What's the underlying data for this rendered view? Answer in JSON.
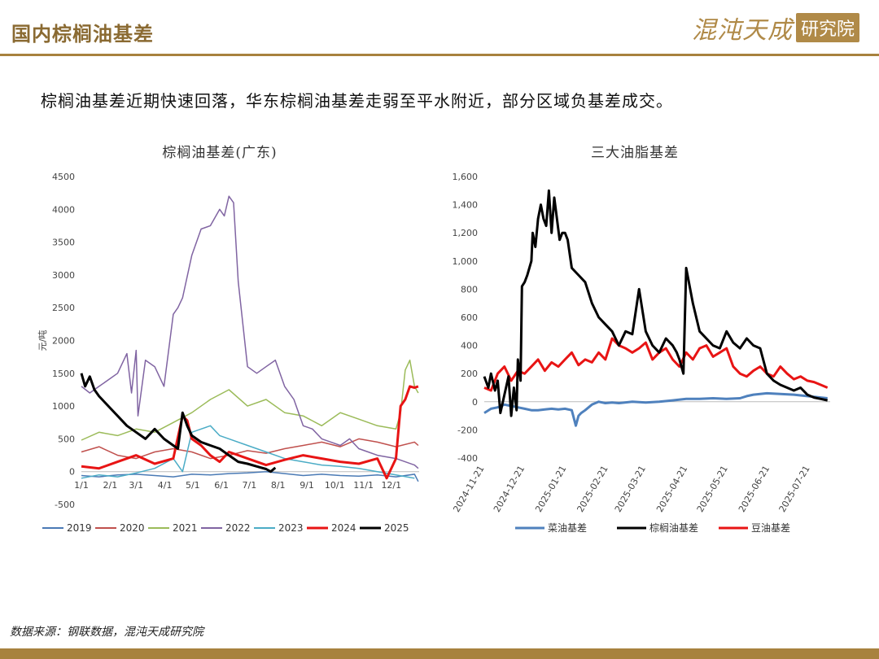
{
  "header": {
    "title": "国内棕榈油基差",
    "logo_main": "混沌天成",
    "logo_box": "研究院"
  },
  "summary": "棕榈油基差近期快速回落，华东棕榈油基差走弱至平水附近，部分区域负基差成交。",
  "footer": {
    "source": "数据来源：钢联数据，混沌天成研究院"
  },
  "chart_data": [
    {
      "type": "line",
      "title": "棕榈油基差(广东)",
      "ylabel": "元/吨",
      "xlabel": "",
      "ylim": [
        -500,
        4500
      ],
      "yticks": [
        -500,
        0,
        500,
        1000,
        1500,
        2000,
        2500,
        3000,
        3500,
        4000,
        4500
      ],
      "xlim": [
        1,
        365
      ],
      "xticks": [
        {
          "label": "1/1",
          "x": 1
        },
        {
          "label": "2/1",
          "x": 32
        },
        {
          "label": "3/1",
          "x": 60
        },
        {
          "label": "4/1",
          "x": 91
        },
        {
          "label": "5/1",
          "x": 121
        },
        {
          "label": "6/1",
          "x": 152
        },
        {
          "label": "7/1",
          "x": 182
        },
        {
          "label": "8/1",
          "x": 213
        },
        {
          "label": "9/1",
          "x": 244
        },
        {
          "label": "10/1",
          "x": 274
        },
        {
          "label": "11/1",
          "x": 305
        },
        {
          "label": "12/1",
          "x": 335
        }
      ],
      "legend_position": "bottom",
      "series": [
        {
          "name": "2019",
          "color": "#4a7ab5",
          "width": 1.5,
          "x": [
            1,
            20,
            40,
            60,
            80,
            100,
            120,
            140,
            160,
            180,
            200,
            220,
            240,
            260,
            280,
            300,
            320,
            340,
            360,
            364
          ],
          "y": [
            -60,
            -80,
            -50,
            -40,
            -60,
            -80,
            -40,
            -50,
            -30,
            -20,
            0,
            -30,
            -60,
            -40,
            -60,
            -70,
            -50,
            -80,
            -40,
            -150
          ]
        },
        {
          "name": "2020",
          "color": "#c0504d",
          "width": 1.5,
          "x": [
            1,
            20,
            40,
            60,
            80,
            100,
            120,
            140,
            160,
            180,
            200,
            220,
            240,
            260,
            280,
            300,
            320,
            340,
            360,
            364
          ],
          "y": [
            300,
            380,
            250,
            200,
            300,
            350,
            300,
            200,
            250,
            320,
            280,
            350,
            400,
            450,
            380,
            500,
            450,
            380,
            450,
            400
          ]
        },
        {
          "name": "2021",
          "color": "#9bbb59",
          "width": 1.5,
          "x": [
            1,
            20,
            40,
            60,
            80,
            100,
            120,
            140,
            160,
            180,
            200,
            220,
            240,
            260,
            280,
            300,
            320,
            340,
            345,
            350,
            355,
            360,
            364
          ],
          "y": [
            480,
            600,
            550,
            650,
            600,
            750,
            900,
            1100,
            1250,
            1000,
            1100,
            900,
            850,
            700,
            900,
            800,
            700,
            650,
            900,
            1550,
            1700,
            1300,
            1200
          ]
        },
        {
          "name": "2022",
          "color": "#8064a2",
          "width": 1.5,
          "x": [
            1,
            10,
            20,
            30,
            40,
            50,
            55,
            60,
            62,
            70,
            80,
            90,
            100,
            105,
            110,
            120,
            130,
            140,
            150,
            155,
            160,
            165,
            170,
            180,
            190,
            200,
            210,
            220,
            230,
            240,
            250,
            260,
            270,
            280,
            290,
            300,
            310,
            320,
            340,
            360,
            364
          ],
          "y": [
            1300,
            1200,
            1300,
            1400,
            1500,
            1800,
            1200,
            1850,
            850,
            1700,
            1600,
            1300,
            2400,
            2500,
            2650,
            3300,
            3700,
            3750,
            4000,
            3900,
            4200,
            4100,
            2900,
            1600,
            1500,
            1600,
            1700,
            1300,
            1100,
            700,
            650,
            500,
            450,
            400,
            500,
            350,
            300,
            250,
            200,
            100,
            50
          ]
        },
        {
          "name": "2023",
          "color": "#4bacc6",
          "width": 1.5,
          "x": [
            1,
            20,
            40,
            60,
            80,
            100,
            110,
            120,
            130,
            140,
            150,
            160,
            180,
            200,
            220,
            240,
            260,
            280,
            300,
            320,
            340,
            360
          ],
          "y": [
            -100,
            -50,
            -80,
            -20,
            50,
            200,
            0,
            600,
            650,
            700,
            550,
            500,
            400,
            300,
            200,
            150,
            100,
            80,
            50,
            0,
            -50,
            -100
          ]
        },
        {
          "name": "2024",
          "color": "#e81414",
          "width": 3,
          "x": [
            1,
            20,
            40,
            60,
            80,
            100,
            110,
            115,
            120,
            130,
            140,
            150,
            160,
            180,
            200,
            220,
            240,
            260,
            280,
            300,
            320,
            330,
            340,
            345,
            350,
            355,
            360,
            364
          ],
          "y": [
            80,
            50,
            150,
            250,
            120,
            200,
            850,
            780,
            500,
            400,
            250,
            150,
            300,
            200,
            100,
            180,
            250,
            200,
            150,
            120,
            200,
            -100,
            200,
            1000,
            1100,
            1300,
            1280,
            1300
          ]
        },
        {
          "name": "2025",
          "color": "#000000",
          "width": 3,
          "x": [
            1,
            5,
            10,
            15,
            20,
            30,
            40,
            50,
            60,
            70,
            80,
            90,
            100,
            105,
            110,
            115,
            120,
            130,
            140,
            150,
            160,
            170,
            180,
            190,
            200,
            205,
            210
          ],
          "y": [
            1500,
            1300,
            1450,
            1250,
            1150,
            1000,
            850,
            700,
            600,
            500,
            650,
            500,
            400,
            350,
            900,
            700,
            550,
            450,
            400,
            350,
            250,
            150,
            120,
            80,
            40,
            0,
            60
          ]
        }
      ]
    },
    {
      "type": "line",
      "title": "三大油脂基差",
      "ylabel": "",
      "xlabel": "",
      "ylim": [
        -400,
        1600
      ],
      "yticks": [
        -400,
        -200,
        0,
        200,
        400,
        600,
        800,
        1000,
        1200,
        1400,
        1600
      ],
      "ytick_labels": [
        "-400",
        "-200",
        "0",
        "200",
        "400",
        "600",
        "800",
        "1,000",
        "1,200",
        "1,400",
        "1,600"
      ],
      "xlim": [
        0,
        257
      ],
      "xticks": [
        {
          "label": "2024-11-21",
          "x": 0
        },
        {
          "label": "2024-12-21",
          "x": 30
        },
        {
          "label": "2025-01-21",
          "x": 61
        },
        {
          "label": "2025-02-21",
          "x": 92
        },
        {
          "label": "2025-03-21",
          "x": 120
        },
        {
          "label": "2025-04-21",
          "x": 151
        },
        {
          "label": "2025-05-21",
          "x": 181
        },
        {
          "label": "2025-06-21",
          "x": 212
        },
        {
          "label": "2025-07-21",
          "x": 242
        }
      ],
      "legend_position": "bottom",
      "series": [
        {
          "name": "豆油基差",
          "color": "#e81414",
          "width": 3,
          "x": [
            0,
            5,
            10,
            15,
            20,
            25,
            30,
            35,
            40,
            45,
            50,
            55,
            60,
            65,
            70,
            75,
            80,
            85,
            90,
            95,
            100,
            105,
            110,
            115,
            120,
            125,
            130,
            135,
            140,
            145,
            150,
            155,
            160,
            165,
            170,
            175,
            180,
            185,
            190,
            195,
            200,
            205,
            210,
            215,
            220,
            225,
            230,
            235,
            240,
            245,
            250,
            255
          ],
          "y": [
            100,
            80,
            200,
            250,
            150,
            220,
            200,
            250,
            300,
            220,
            280,
            250,
            300,
            350,
            260,
            300,
            280,
            350,
            300,
            450,
            400,
            380,
            350,
            380,
            420,
            300,
            350,
            380,
            300,
            250,
            350,
            300,
            380,
            400,
            320,
            350,
            380,
            250,
            200,
            180,
            220,
            250,
            200,
            180,
            250,
            200,
            160,
            180,
            150,
            140,
            120,
            100
          ]
        },
        {
          "name": "菜油基差",
          "color": "#4f81bd",
          "width": 3,
          "x": [
            0,
            5,
            10,
            15,
            20,
            25,
            30,
            35,
            40,
            45,
            50,
            55,
            60,
            65,
            68,
            70,
            72,
            75,
            80,
            85,
            90,
            95,
            100,
            110,
            120,
            130,
            140,
            150,
            160,
            170,
            180,
            190,
            195,
            200,
            210,
            220,
            230,
            240,
            250,
            255
          ],
          "y": [
            -80,
            -50,
            -40,
            -20,
            -30,
            -40,
            -50,
            -60,
            -60,
            -55,
            -50,
            -55,
            -50,
            -60,
            -170,
            -100,
            -80,
            -60,
            -20,
            0,
            -10,
            -5,
            -10,
            0,
            -5,
            0,
            10,
            20,
            20,
            25,
            20,
            25,
            40,
            50,
            60,
            55,
            50,
            40,
            30,
            25
          ]
        },
        {
          "name": "棕榈油基差",
          "color": "#000000",
          "width": 3,
          "x": [
            0,
            3,
            5,
            8,
            10,
            12,
            15,
            18,
            20,
            22,
            24,
            25,
            27,
            28,
            30,
            32,
            35,
            36,
            38,
            40,
            42,
            44,
            46,
            48,
            50,
            52,
            54,
            56,
            58,
            60,
            62,
            65,
            70,
            75,
            80,
            85,
            90,
            95,
            100,
            105,
            110,
            115,
            120,
            125,
            130,
            135,
            140,
            143,
            145,
            148,
            150,
            155,
            160,
            165,
            170,
            175,
            180,
            185,
            190,
            195,
            200,
            205,
            210,
            215,
            220,
            225,
            230,
            235,
            240,
            245,
            250,
            255
          ],
          "y": [
            180,
            100,
            200,
            80,
            150,
            -80,
            50,
            180,
            -100,
            100,
            -60,
            300,
            150,
            820,
            850,
            900,
            1000,
            1200,
            1100,
            1300,
            1400,
            1300,
            1250,
            1500,
            1200,
            1450,
            1300,
            1150,
            1200,
            1200,
            1150,
            950,
            900,
            850,
            700,
            600,
            550,
            500,
            400,
            500,
            480,
            800,
            500,
            400,
            350,
            450,
            400,
            350,
            300,
            200,
            950,
            700,
            500,
            450,
            400,
            380,
            500,
            420,
            380,
            450,
            400,
            380,
            200,
            150,
            120,
            100,
            80,
            100,
            50,
            30,
            20,
            10
          ]
        }
      ]
    }
  ]
}
